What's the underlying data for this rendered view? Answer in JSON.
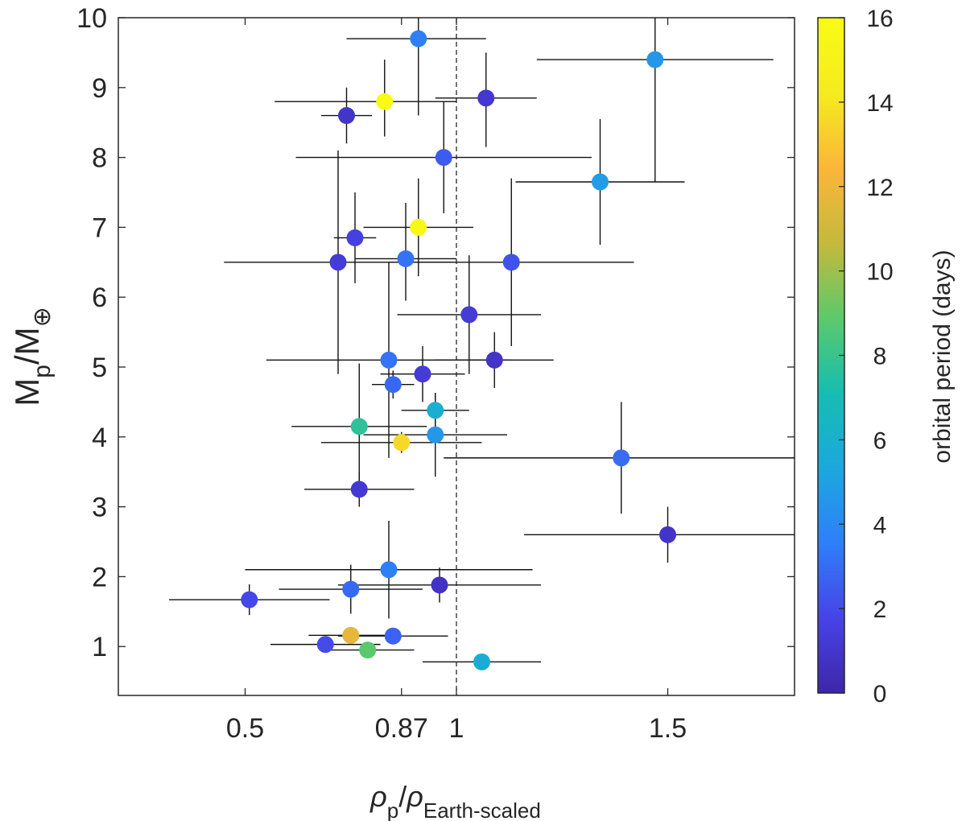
{
  "chart_data": {
    "type": "scatter",
    "xlabel_parts": {
      "main": "ρ",
      "sub1": "p",
      "slash": "/",
      "main2": "ρ",
      "sub2": "Earth-scaled"
    },
    "ylabel_parts": {
      "main": "M",
      "sub1": "p",
      "slash": "/M",
      "sub2": "⊕"
    },
    "colorbar_label": "orbital period (days)",
    "xlim": [
      0.2,
      1.8
    ],
    "ylim": [
      0.3,
      10
    ],
    "x_ticks": [
      {
        "value": 0.5,
        "label": "0.5"
      },
      {
        "value": 0.87,
        "label": "0.87"
      },
      {
        "value": 1.0,
        "label": "1"
      },
      {
        "value": 1.5,
        "label": "1.5"
      }
    ],
    "y_ticks": [
      {
        "value": 1,
        "label": "1"
      },
      {
        "value": 2,
        "label": "2"
      },
      {
        "value": 3,
        "label": "3"
      },
      {
        "value": 4,
        "label": "4"
      },
      {
        "value": 5,
        "label": "5"
      },
      {
        "value": 6,
        "label": "6"
      },
      {
        "value": 7,
        "label": "7"
      },
      {
        "value": 8,
        "label": "8"
      },
      {
        "value": 9,
        "label": "9"
      },
      {
        "value": 10,
        "label": "10"
      }
    ],
    "reference_line_x": 1.0,
    "colorbar": {
      "range": [
        0,
        16
      ],
      "ticks": [
        {
          "value": 0,
          "label": "0"
        },
        {
          "value": 2,
          "label": "2"
        },
        {
          "value": 4,
          "label": "4"
        },
        {
          "value": 6,
          "label": "6"
        },
        {
          "value": 8,
          "label": "8"
        },
        {
          "value": 10,
          "label": "10"
        },
        {
          "value": 12,
          "label": "12"
        },
        {
          "value": 14,
          "label": "14"
        },
        {
          "value": 16,
          "label": "16"
        }
      ],
      "colormap_stops": [
        "#3e26a8",
        "#4743e7",
        "#2f7ff9",
        "#1ca8dd",
        "#16bdb1",
        "#5dc96b",
        "#c5b93c",
        "#fbb63a",
        "#f4ec1e",
        "#f9fb15"
      ]
    },
    "points": [
      {
        "x": 0.91,
        "y": 9.7,
        "xerr": [
          0.17,
          0.16
        ],
        "yerr": [
          1.1,
          1.1
        ],
        "period": 3.6
      },
      {
        "x": 1.47,
        "y": 9.4,
        "xerr": [
          0.28,
          0.28
        ],
        "yerr": [
          1.75,
          0.8
        ],
        "period": 4.6
      },
      {
        "x": 0.83,
        "y": 8.8,
        "xerr": [
          0.26,
          0.17
        ],
        "yerr": [
          0.5,
          0.6
        ],
        "period": 16
      },
      {
        "x": 0.74,
        "y": 8.6,
        "xerr": [
          0.06,
          0.06
        ],
        "yerr": [
          0.4,
          0.4
        ],
        "period": 0.9
      },
      {
        "x": 1.07,
        "y": 8.85,
        "xerr": [
          0.12,
          0.12
        ],
        "yerr": [
          0.7,
          0.65
        ],
        "period": 1.1
      },
      {
        "x": 0.97,
        "y": 8.0,
        "xerr": [
          0.35,
          0.35
        ],
        "yerr": [
          0.8,
          0.8
        ],
        "period": 2.5
      },
      {
        "x": 1.34,
        "y": 7.65,
        "xerr": [
          0.2,
          0.2
        ],
        "yerr": [
          0.9,
          0.9
        ],
        "period": 4.8
      },
      {
        "x": 0.91,
        "y": 7.0,
        "xerr": [
          0.13,
          0.13
        ],
        "yerr": [
          0.7,
          0.7
        ],
        "period": 15.7
      },
      {
        "x": 0.76,
        "y": 6.85,
        "xerr": [
          0.05,
          0.05
        ],
        "yerr": [
          0.65,
          0.65
        ],
        "period": 1.6
      },
      {
        "x": 0.72,
        "y": 6.5,
        "xerr": [
          0.27,
          0.27
        ],
        "yerr": [
          1.6,
          1.6
        ],
        "period": 1.3
      },
      {
        "x": 0.88,
        "y": 6.55,
        "xerr": [
          0.12,
          0.12
        ],
        "yerr": [
          0.6,
          0.8
        ],
        "period": 3.2
      },
      {
        "x": 1.13,
        "y": 6.5,
        "xerr": [
          0.29,
          0.29
        ],
        "yerr": [
          1.2,
          1.2
        ],
        "period": 2.2
      },
      {
        "x": 1.03,
        "y": 5.75,
        "xerr": [
          0.17,
          0.17
        ],
        "yerr": [
          0.85,
          0.85
        ],
        "period": 1.3
      },
      {
        "x": 0.84,
        "y": 5.1,
        "xerr": [
          0.29,
          0.29
        ],
        "yerr": [
          1.4,
          1.4
        ],
        "period": 3.2
      },
      {
        "x": 1.09,
        "y": 5.1,
        "xerr": [
          0.14,
          0.14
        ],
        "yerr": [
          0.4,
          0.4
        ],
        "period": 0.9
      },
      {
        "x": 0.92,
        "y": 4.9,
        "xerr": [
          0.1,
          0.1
        ],
        "yerr": [
          0.4,
          0.4
        ],
        "period": 1.3
      },
      {
        "x": 0.85,
        "y": 4.75,
        "xerr": [
          0.05,
          0.05
        ],
        "yerr": [
          0.2,
          0.2
        ],
        "period": 2.9
      },
      {
        "x": 0.95,
        "y": 4.38,
        "xerr": [
          0.08,
          0.08
        ],
        "yerr": [
          0.25,
          0.25
        ],
        "period": 5.8
      },
      {
        "x": 0.77,
        "y": 4.15,
        "xerr": [
          0.16,
          0.16
        ],
        "yerr": [
          0.9,
          0.9
        ],
        "period": 7.7
      },
      {
        "x": 0.95,
        "y": 4.03,
        "xerr": [
          0.17,
          0.17
        ],
        "yerr": [
          0.6,
          0.6
        ],
        "period": 4.6
      },
      {
        "x": 0.87,
        "y": 3.92,
        "xerr": [
          0.19,
          0.19
        ],
        "yerr": [
          0.15,
          0.15
        ],
        "period": 13.6
      },
      {
        "x": 1.39,
        "y": 3.7,
        "xerr": [
          0.42,
          0.42
        ],
        "yerr": [
          0.8,
          0.8
        ],
        "period": 3.0
      },
      {
        "x": 0.77,
        "y": 3.25,
        "xerr": [
          0.13,
          0.13
        ],
        "yerr": [
          0.25,
          0.25
        ],
        "period": 1.2
      },
      {
        "x": 1.5,
        "y": 2.6,
        "xerr": [
          0.34,
          0.34
        ],
        "yerr": [
          0.4,
          0.4
        ],
        "period": 0.9
      },
      {
        "x": 0.84,
        "y": 2.1,
        "xerr": [
          0.34,
          0.34
        ],
        "yerr": [
          0.7,
          0.7
        ],
        "period": 3.6
      },
      {
        "x": 0.96,
        "y": 1.88,
        "xerr": [
          0.24,
          0.24
        ],
        "yerr": [
          0.25,
          0.25
        ],
        "period": 0.8
      },
      {
        "x": 0.75,
        "y": 1.82,
        "xerr": [
          0.17,
          0.17
        ],
        "yerr": [
          0.35,
          0.35
        ],
        "period": 2.9
      },
      {
        "x": 0.51,
        "y": 1.67,
        "xerr": [
          0.19,
          0.19
        ],
        "yerr": [
          0.22,
          0.22
        ],
        "period": 1.9
      },
      {
        "x": 0.75,
        "y": 1.16,
        "xerr": [
          0.1,
          0.1
        ],
        "yerr": [
          0.1,
          0.1
        ],
        "period": 11.8
      },
      {
        "x": 0.85,
        "y": 1.15,
        "xerr": [
          0.13,
          0.13
        ],
        "yerr": [
          0.1,
          0.1
        ],
        "period": 2.7
      },
      {
        "x": 0.69,
        "y": 1.03,
        "xerr": [
          0.13,
          0.13
        ],
        "yerr": [
          0.1,
          0.1
        ],
        "period": 2.0
      },
      {
        "x": 0.79,
        "y": 0.95,
        "xerr": [
          0.11,
          0.11
        ],
        "yerr": [
          0.1,
          0.1
        ],
        "period": 8.8
      },
      {
        "x": 1.06,
        "y": 0.78,
        "xerr": [
          0.14,
          0.14
        ],
        "yerr": [
          0.05,
          0.05
        ],
        "period": 5.6
      }
    ]
  }
}
